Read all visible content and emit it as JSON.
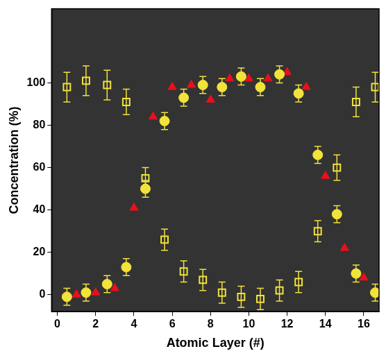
{
  "chart_data": {
    "type": "scatter",
    "x_label": "Atomic Layer (#)",
    "y_label": "Concentration (%)",
    "xlim": [
      -0.3,
      16.8
    ],
    "xticks": [
      0,
      2,
      4,
      6,
      8,
      10,
      12,
      14,
      16
    ],
    "ylim": [
      -8,
      135
    ],
    "yticks": [
      0,
      20,
      40,
      60,
      80,
      100
    ],
    "grid": false,
    "series": [
      {
        "color": "#f2e33a",
        "marker": "open_square",
        "x": [
          0.5,
          1.5,
          2.6,
          3.6,
          4.6,
          5.6,
          6.6,
          7.6,
          8.6,
          9.6,
          10.6,
          11.6,
          12.6,
          13.6,
          14.6,
          15.6,
          16.6
        ],
        "values": [
          98,
          101,
          99,
          91,
          55,
          26,
          11,
          7,
          1,
          -1,
          -2,
          2,
          6,
          30,
          60,
          91,
          98
        ],
        "errors": [
          7,
          7,
          7,
          6,
          5,
          5,
          5,
          5,
          5,
          5,
          5,
          5,
          5,
          5,
          6,
          7,
          7
        ]
      },
      {
        "color": "#f2e33a",
        "marker": "circle",
        "x": [
          0.5,
          1.5,
          2.6,
          3.6,
          4.6,
          5.6,
          6.6,
          7.6,
          8.6,
          9.6,
          10.6,
          11.6,
          12.6,
          13.6,
          14.6,
          15.6,
          16.6
        ],
        "values": [
          -1,
          1,
          5,
          13,
          50,
          82,
          93,
          99,
          98,
          103,
          98,
          104,
          95,
          66,
          38,
          10,
          1
        ],
        "errors": [
          4,
          4,
          4,
          4,
          4,
          4,
          4,
          4,
          4,
          4,
          4,
          4,
          4,
          4,
          4,
          4,
          4
        ]
      },
      {
        "color": "#e8101e",
        "marker": "triangle",
        "x": [
          1,
          2,
          3,
          4,
          5,
          6,
          7,
          8,
          9,
          10,
          11,
          12,
          13,
          14,
          15,
          16
        ],
        "values": [
          0,
          1,
          3,
          41,
          84,
          98,
          99,
          92,
          102,
          102,
          102,
          105,
          98,
          56,
          22,
          8
        ]
      }
    ]
  }
}
